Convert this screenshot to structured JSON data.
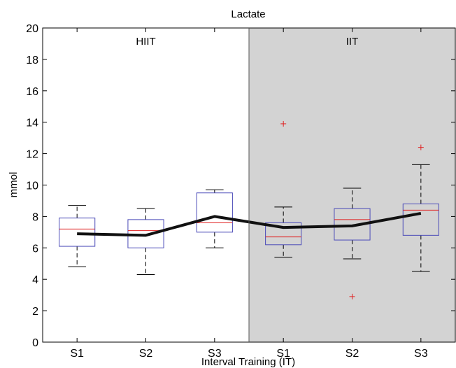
{
  "chart_data": {
    "type": "box",
    "title": "Lactate",
    "xlabel": "Interval Training (IT)",
    "ylabel": "mmol",
    "ylim": [
      0,
      20
    ],
    "yticks": [
      0,
      2,
      4,
      6,
      8,
      10,
      12,
      14,
      16,
      18,
      20
    ],
    "categories": [
      "S1",
      "S2",
      "S3",
      "S1",
      "S2",
      "S3"
    ],
    "groups": [
      {
        "label": "HIIT",
        "from": 0,
        "to": 2,
        "shaded": false
      },
      {
        "label": "IIT",
        "from": 3,
        "to": 5,
        "shaded": true
      }
    ],
    "boxes": [
      {
        "min": 4.8,
        "q1": 6.1,
        "median": 7.2,
        "q3": 7.9,
        "max": 8.7,
        "outliers": []
      },
      {
        "min": 4.3,
        "q1": 6.0,
        "median": 7.1,
        "q3": 7.8,
        "max": 8.5,
        "outliers": []
      },
      {
        "min": 6.0,
        "q1": 7.0,
        "median": 7.6,
        "q3": 9.5,
        "max": 9.7,
        "outliers": []
      },
      {
        "min": 5.4,
        "q1": 6.2,
        "median": 6.7,
        "q3": 7.6,
        "max": 8.6,
        "outliers": [
          13.9
        ]
      },
      {
        "min": 5.3,
        "q1": 6.5,
        "median": 7.8,
        "q3": 8.5,
        "max": 9.8,
        "outliers": [
          2.9
        ]
      },
      {
        "min": 4.5,
        "q1": 6.8,
        "median": 8.4,
        "q3": 8.8,
        "max": 11.3,
        "outliers": [
          12.4
        ]
      }
    ],
    "mean_line": [
      6.9,
      6.8,
      8.0,
      7.3,
      7.4,
      8.2
    ],
    "colors": {
      "box": "#4a4ab8",
      "median": "#e02020",
      "outlier": "#e02020",
      "mean_line": "#111111",
      "shade": "#d3d3d3"
    }
  }
}
